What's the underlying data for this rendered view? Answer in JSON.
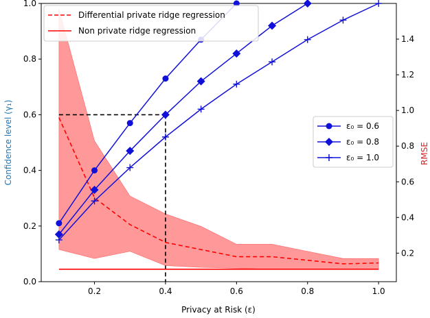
{
  "chart_data": {
    "type": "line",
    "xlabel": "Privacy at Risk (ε)",
    "ylabel_left": "Confidence level (γ₁)",
    "ylabel_right": "RMSE",
    "xlim": [
      0.05,
      1.05
    ],
    "ylim_left": [
      0.0,
      1.0
    ],
    "ylim_right": [
      0.04,
      1.6
    ],
    "x_ticks": [
      0.2,
      0.4,
      0.6,
      0.8,
      1.0
    ],
    "x_tick_labels": [
      "0.2",
      "0.4",
      "0.6",
      "0.8",
      "1.0"
    ],
    "y_left_ticks": [
      0.0,
      0.2,
      0.4,
      0.6,
      0.8,
      1.0
    ],
    "y_left_tick_labels": [
      "0.0",
      "0.2",
      "0.4",
      "0.6",
      "0.8",
      "1.0"
    ],
    "y_right_ticks": [
      0.2,
      0.4,
      0.6,
      0.8,
      1.0,
      1.2,
      1.4
    ],
    "y_right_tick_labels": [
      "0.2",
      "0.4",
      "0.6",
      "0.8",
      "1.0",
      "1.2",
      "1.4"
    ],
    "colors": {
      "left_axis": "#1f77b4",
      "right_axis": "#d62728",
      "series_blue": "#1010d8",
      "red": "#ff0000",
      "band": "#ff8080"
    },
    "confidence_series": [
      {
        "name": "ε₀ = 0.6",
        "marker": "circle",
        "x": [
          0.1,
          0.2,
          0.3,
          0.4,
          0.5,
          0.6
        ],
        "y": [
          0.21,
          0.4,
          0.57,
          0.73,
          0.87,
          1.0
        ]
      },
      {
        "name": "ε₀ = 0.8",
        "marker": "diamond",
        "x": [
          0.1,
          0.2,
          0.3,
          0.4,
          0.5,
          0.6,
          0.7,
          0.8
        ],
        "y": [
          0.17,
          0.33,
          0.47,
          0.6,
          0.72,
          0.82,
          0.92,
          1.0
        ]
      },
      {
        "name": "ε₀ = 1.0",
        "marker": "plus",
        "x": [
          0.1,
          0.2,
          0.3,
          0.4,
          0.5,
          0.6,
          0.7,
          0.8,
          0.9,
          1.0
        ],
        "y": [
          0.15,
          0.29,
          0.41,
          0.52,
          0.62,
          0.71,
          0.79,
          0.87,
          0.94,
          1.0
        ]
      }
    ],
    "rmse_series": [
      {
        "name": "Differential private ridge regression",
        "style": "dashed",
        "x": [
          0.1,
          0.2,
          0.3,
          0.4,
          0.5,
          0.6,
          0.7,
          0.8,
          0.9,
          1.0
        ],
        "y": [
          0.96,
          0.51,
          0.36,
          0.26,
          0.22,
          0.18,
          0.18,
          0.16,
          0.14,
          0.145
        ],
        "band_lower": [
          0.22,
          0.17,
          0.21,
          0.13,
          0.12,
          0.115,
          0.11,
          0.11,
          0.11,
          0.11
        ],
        "band_upper": [
          1.57,
          0.83,
          0.52,
          0.42,
          0.35,
          0.25,
          0.25,
          0.21,
          0.17,
          0.17
        ]
      },
      {
        "name": "Non private ridge regression",
        "style": "solid",
        "x": [
          0.1,
          1.0
        ],
        "y": [
          0.11,
          0.11
        ]
      }
    ],
    "guide_lines": {
      "x": 0.4,
      "y": 0.6
    },
    "legend_top_left": [
      "Differential private ridge regression",
      "Non private ridge regression"
    ],
    "legend_right": [
      "ε₀ = 0.6",
      "ε₀ = 0.8",
      "ε₀ = 1.0"
    ]
  }
}
